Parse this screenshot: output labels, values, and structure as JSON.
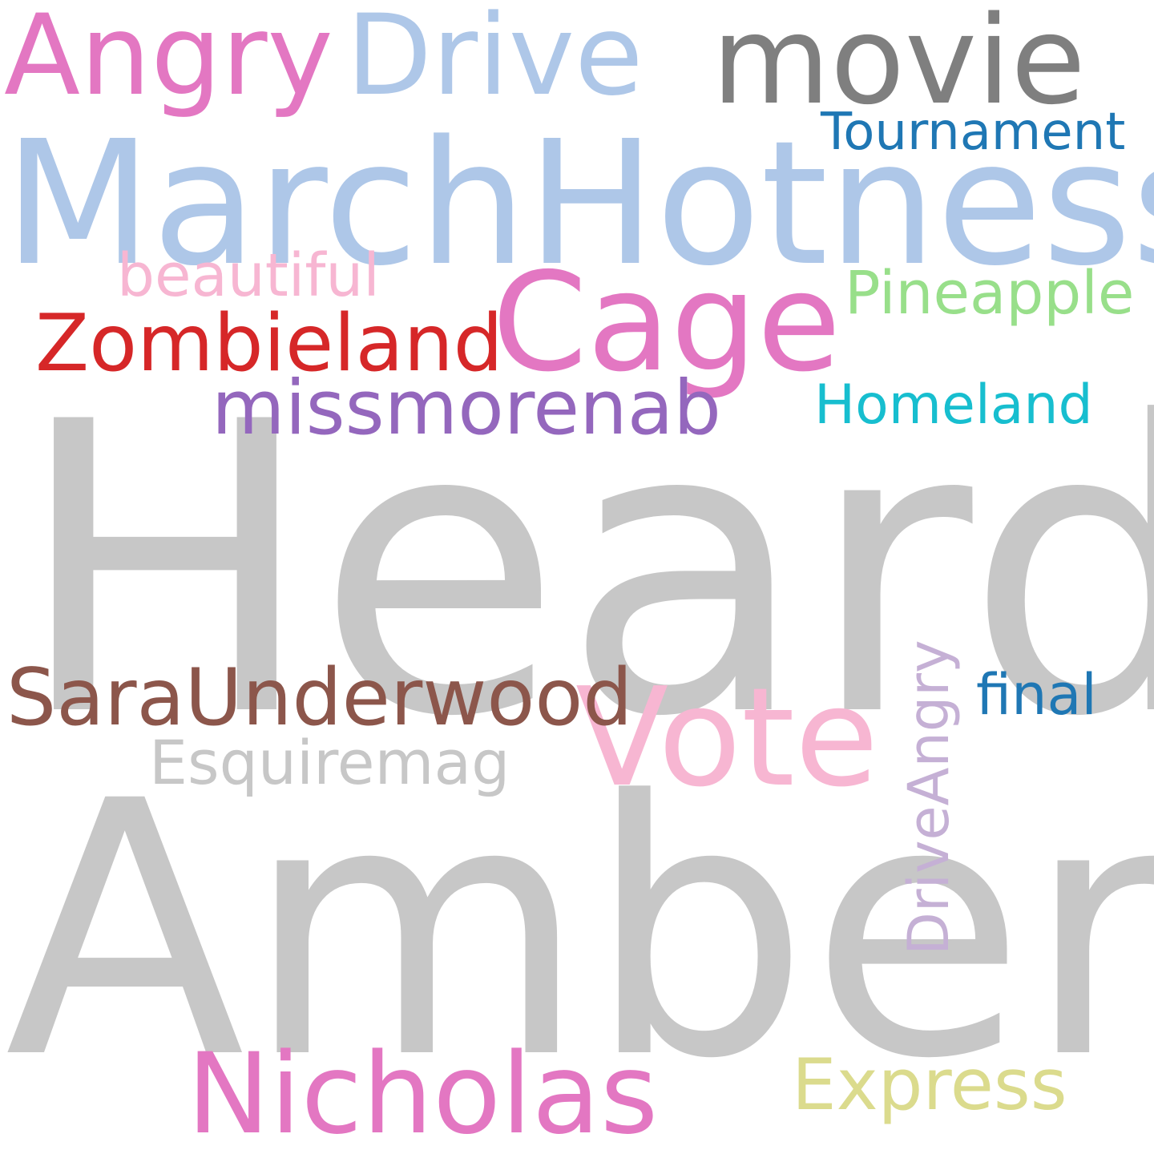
{
  "words": [
    {
      "text": "Heard",
      "color": "#c7c7c7"
    },
    {
      "text": "Amber",
      "color": "#c7c7c7"
    },
    {
      "text": "MarchHotness",
      "color": "#aec7e8"
    },
    {
      "text": "Cage",
      "color": "#e377c2"
    },
    {
      "text": "Vote",
      "color": "#f7b6d2"
    },
    {
      "text": "Drive",
      "color": "#aec7e8"
    },
    {
      "text": "movie",
      "color": "#7f7f7f"
    },
    {
      "text": "Angry",
      "color": "#e377c2"
    },
    {
      "text": "Nicholas",
      "color": "#e377c2"
    },
    {
      "text": "SaraUnderwood",
      "color": "#8c564b"
    },
    {
      "text": "missmorenab",
      "color": "#9467bd"
    },
    {
      "text": "Zombieland",
      "color": "#d62728"
    },
    {
      "text": "Express",
      "color": "#dbdb8d"
    },
    {
      "text": "Esquiremag",
      "color": "#c7c7c7"
    },
    {
      "text": "Pineapple",
      "color": "#98df8a"
    },
    {
      "text": "Tournament",
      "color": "#1f77b4"
    },
    {
      "text": "beautiful",
      "color": "#f7b6d2"
    },
    {
      "text": "Homeland",
      "color": "#17becf"
    },
    {
      "text": "DriveAngry",
      "color": "#c5b0d5"
    },
    {
      "text": "final",
      "color": "#1f77b4"
    }
  ]
}
